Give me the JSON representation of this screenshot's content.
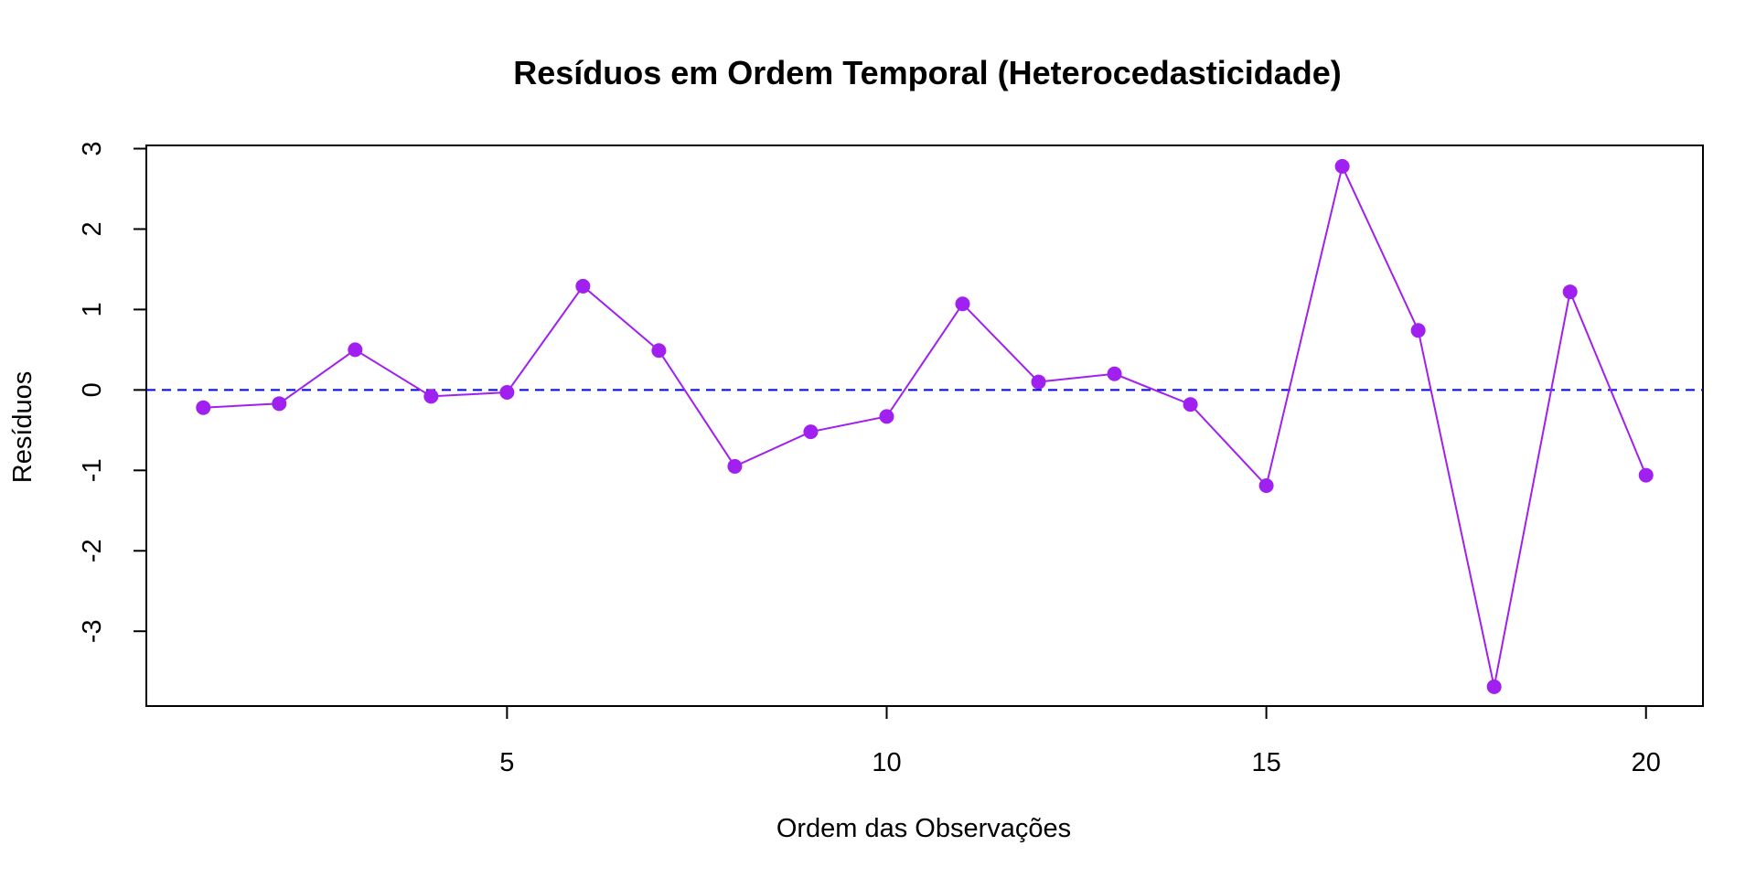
{
  "chart_data": {
    "type": "line",
    "title": "Resíduos em Ordem Temporal (Heterocedasticidade)",
    "xlabel": "Ordem das Observações",
    "ylabel": "Resíduos",
    "xlim": [
      0.25,
      20.75
    ],
    "ylim": [
      -3.93,
      3.04
    ],
    "x_ticks": [
      5,
      10,
      15,
      20
    ],
    "x_tick_labels": [
      "5",
      "10",
      "15",
      "20"
    ],
    "y_ticks": [
      -3,
      -2,
      -1,
      0,
      1,
      2,
      3
    ],
    "y_tick_labels": [
      "-3",
      "-2",
      "-1",
      "0",
      "1",
      "2",
      "3"
    ],
    "grid": false,
    "legend": "none",
    "reference_line": {
      "y": 0,
      "style": "dashed",
      "color": "#0000ff"
    },
    "series": [
      {
        "x": [
          1,
          2,
          3,
          4,
          5,
          6,
          7,
          8,
          9,
          10,
          11,
          12,
          13,
          14,
          15,
          16,
          17,
          18,
          19,
          20
        ],
        "values": [
          -0.22,
          -0.17,
          0.5,
          -0.08,
          -0.03,
          1.29,
          0.49,
          -0.95,
          -0.52,
          -0.33,
          1.07,
          0.1,
          0.2,
          -0.18,
          -1.19,
          2.78,
          0.74,
          -3.69,
          1.22,
          -1.06
        ],
        "color": "#a020f0",
        "style": "line-with-points"
      }
    ]
  }
}
